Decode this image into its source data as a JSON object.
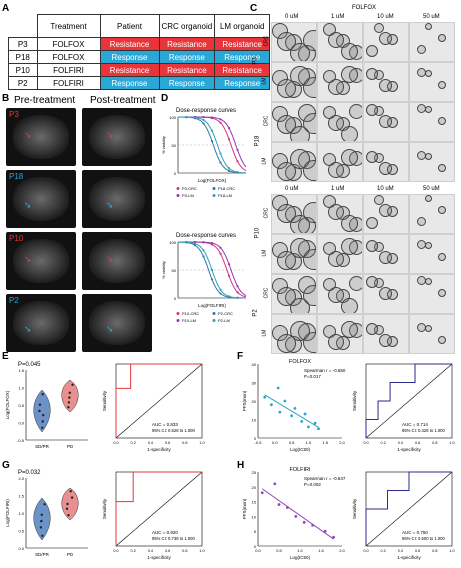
{
  "panels": {
    "a": "A",
    "b": "B",
    "c": "C",
    "d": "D",
    "e": "E",
    "f": "F",
    "g": "G",
    "h": "H"
  },
  "table": {
    "headers": [
      "",
      "Treatment",
      "Patient",
      "CRC organoid",
      "LM organoid"
    ],
    "rows": [
      {
        "id": "P3",
        "treatment": "FOLFOX",
        "patient": "Resistance",
        "crc": "Resistance",
        "lm": "Resistance"
      },
      {
        "id": "P18",
        "treatment": "FOLFOX",
        "patient": "Response",
        "crc": "Response",
        "lm": "Response"
      },
      {
        "id": "P10",
        "treatment": "FOLFIRI",
        "patient": "Resistance",
        "crc": "Resistance",
        "lm": "Resistance"
      },
      {
        "id": "P2",
        "treatment": "FOLFIRI",
        "patient": "Response",
        "crc": "Response",
        "lm": "Response"
      }
    ]
  },
  "mri": {
    "pre": "Pre-treatment",
    "post": "Post-treatment",
    "patients": [
      {
        "label": "P3",
        "color": "#e8353a"
      },
      {
        "label": "P18",
        "color": "#2aa7d6"
      },
      {
        "label": "P10",
        "color": "#e8353a"
      },
      {
        "label": "P2",
        "color": "#2aa7d6"
      }
    ]
  },
  "organoids": {
    "folfox_title": "FOLFOX",
    "folfiri_title": "FOLFIRI",
    "doses": [
      "0 uM",
      "1 uM",
      "10 uM",
      "50 uM"
    ],
    "row_types": [
      "CRC",
      "LM"
    ],
    "folfox_patients": [
      "P3",
      "P18"
    ],
    "folfiri_patients": [
      "P10",
      "P2"
    ]
  },
  "dose_response": [
    {
      "title": "Dose-response curves",
      "xlabel": "Log(FOLFOX)",
      "ylabel": "% viability",
      "yticks": [
        "100",
        "50",
        "0"
      ],
      "legend": [
        "P3-CRC",
        "P18-CRC",
        "P3-LM",
        "P18-LM"
      ],
      "colors": [
        "#d6337a",
        "#2a7ab0",
        "#8e3bb5",
        "#33a0b5"
      ]
    },
    {
      "title": "Dose-response curves",
      "xlabel": "Log(FOLFIRI)",
      "ylabel": "% viability",
      "yticks": [
        "100",
        "50",
        "0"
      ],
      "legend": [
        "P10-CRC",
        "P2-CRC",
        "P10-LM",
        "P2-LM"
      ],
      "colors": [
        "#d6337a",
        "#2a7ab0",
        "#8e3bb5",
        "#33a0b5"
      ]
    }
  ],
  "violin_e": {
    "p": "P=0.045",
    "ylabel": "Log(FOLFOX)",
    "groups": [
      "SD/PR",
      "PD"
    ],
    "yticks": [
      "1.5",
      "1.0",
      "0.5",
      "0.0",
      "-0.5"
    ]
  },
  "violin_g": {
    "p": "P=0.032",
    "ylabel": "Log(FOLFIRI)",
    "groups": [
      "SD/PR",
      "PD"
    ],
    "yticks": [
      "2.0",
      "1.5",
      "1.0",
      "0.5",
      "0.0"
    ]
  },
  "roc_e": {
    "auc": "AUC = 0.833",
    "ci": "95% CI: 0.626 to 1.000",
    "xlabel": "1-specificity",
    "ylabel": "Sensitivity"
  },
  "roc_g": {
    "auc": "AUC = 0.920",
    "ci": "95% CI: 0.738 to 1.000",
    "xlabel": "1-specificity",
    "ylabel": "Sensitivity"
  },
  "roc_f": {
    "auc": "AUC = 0.714",
    "ci": "95% CI: 0.426 to 1.000",
    "xlabel": "1-specificity",
    "ylabel": "Sensitivity"
  },
  "roc_h": {
    "auc": "AUC = 0.750",
    "ci": "95% CI: 0.500 to 1.000",
    "xlabel": "1-specificity",
    "ylabel": "Sensitivity"
  },
  "roc_ticks": [
    "0.0",
    "0.2",
    "0.4",
    "0.6",
    "0.8",
    "1.0"
  ],
  "scatter_f": {
    "title": "FOLFOX",
    "r": "Spearman r = -0.650",
    "p": "P=0.017",
    "xlabel": "Log(IC50)",
    "ylabel": "PFS(mon)",
    "yticks": [
      "40",
      "30",
      "20",
      "10",
      "0"
    ],
    "xticks": [
      "-0.5",
      "0.0",
      "0.5",
      "1.0",
      "1.5",
      "2.0"
    ]
  },
  "scatter_h": {
    "title": "FOLFIRI",
    "r": "Spearman r = -0.847",
    "p": "P=0.002",
    "xlabel": "Log(IC50)",
    "ylabel": "PFS(mon)",
    "yticks": [
      "25",
      "20",
      "15",
      "10",
      "5",
      "0"
    ],
    "xticks": [
      "0.0",
      "0.5",
      "1.0",
      "1.5",
      "2.0"
    ]
  },
  "chart_data": [
    {
      "type": "scatter",
      "title": "FOLFOX",
      "xlabel": "Log(IC50)",
      "ylabel": "PFS(mon)",
      "x": [
        -0.3,
        -0.1,
        0.1,
        0.15,
        0.3,
        0.5,
        0.6,
        0.8,
        0.9,
        1.0,
        1.2,
        1.3
      ],
      "y": [
        22,
        18,
        27,
        14,
        20,
        12,
        16,
        9,
        13,
        6,
        8,
        5
      ],
      "xlim": [
        -0.5,
        2.0
      ],
      "ylim": [
        0,
        40
      ]
    },
    {
      "type": "scatter",
      "title": "FOLFIRI",
      "xlabel": "Log(IC50)",
      "ylabel": "PFS(mon)",
      "x": [
        0.1,
        0.4,
        0.5,
        0.7,
        0.9,
        1.1,
        1.3,
        1.6,
        1.8
      ],
      "y": [
        18,
        21,
        14,
        13,
        10,
        8,
        7,
        5,
        3
      ],
      "xlim": [
        0,
        2.0
      ],
      "ylim": [
        0,
        25
      ]
    }
  ]
}
